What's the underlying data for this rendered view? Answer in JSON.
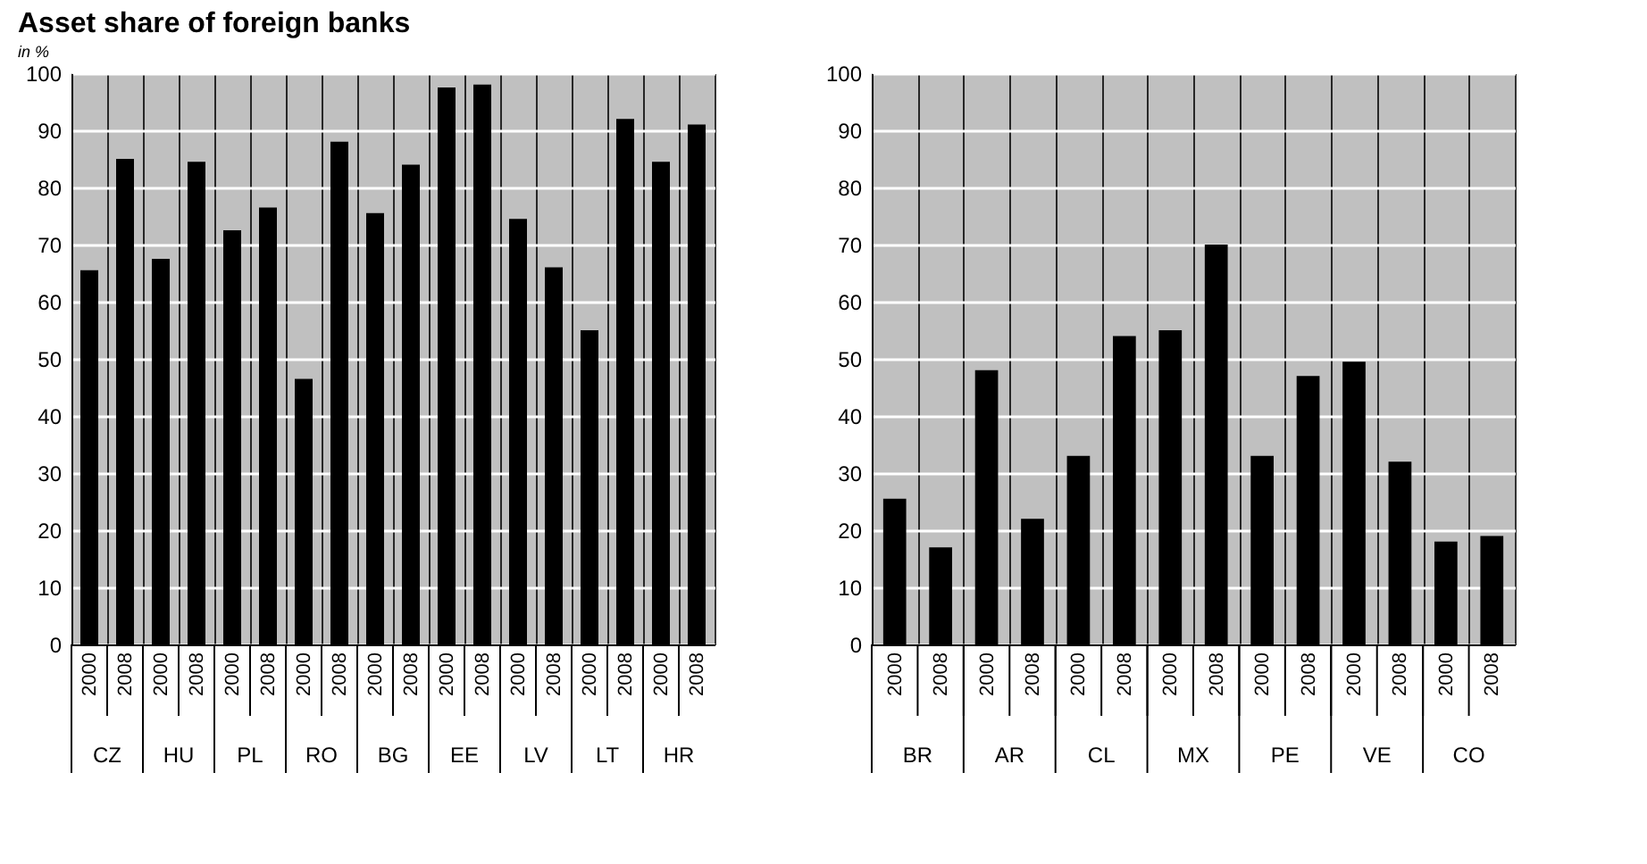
{
  "chart_data": [
    {
      "type": "bar",
      "title": "Asset share of foreign banks",
      "ylabel": "in %",
      "categories": [
        "2000",
        "2008",
        "2000",
        "2008",
        "2000",
        "2008",
        "2000",
        "2008",
        "2000",
        "2008",
        "2000",
        "2008",
        "2000",
        "2008",
        "2000",
        "2008",
        "2000",
        "2008"
      ],
      "annotations": [
        "CZ",
        "HU",
        "PL",
        "RO",
        "BG",
        "EE",
        "LV",
        "LT",
        "HR"
      ],
      "values": [
        65.5,
        85,
        67.5,
        84.5,
        72.5,
        76.5,
        46.5,
        88,
        75.5,
        84,
        97.5,
        98,
        74.5,
        66,
        55,
        92,
        84.5,
        91
      ],
      "color": "#000000",
      "ylim": [
        0,
        100
      ],
      "yticks": [
        0,
        10,
        20,
        30,
        40,
        50,
        60,
        70,
        80,
        90,
        100
      ],
      "grid": true
    },
    {
      "type": "bar",
      "categories": [
        "2000",
        "2008",
        "2000",
        "2008",
        "2000",
        "2008",
        "2000",
        "2008",
        "2000",
        "2008",
        "2000",
        "2008",
        "2000",
        "2008"
      ],
      "annotations": [
        "BR",
        "AR",
        "CL",
        "MX",
        "PE",
        "VE",
        "CO"
      ],
      "values": [
        25.5,
        17,
        48,
        22,
        33,
        54,
        55,
        70,
        33,
        47,
        49.5,
        32,
        18,
        19
      ],
      "color": "#000000",
      "ylim": [
        0,
        100
      ],
      "yticks": [
        0,
        10,
        20,
        30,
        40,
        50,
        60,
        70,
        80,
        90,
        100
      ],
      "grid": true
    }
  ]
}
